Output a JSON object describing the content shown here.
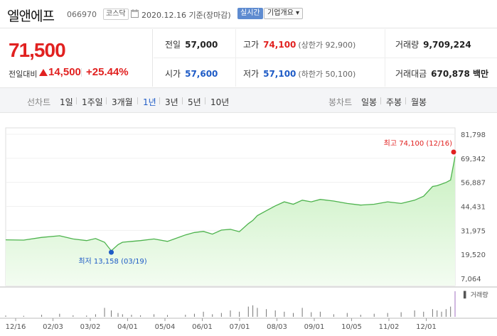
{
  "header": {
    "name": "엘앤에프",
    "code": "066970",
    "market": "코스닥",
    "date_text": "2020.12.16  기준(장마감)",
    "realtime_label": "실시간",
    "overview_label": "기업개요 ▾"
  },
  "price": {
    "current": "71,500",
    "change_label": "전일대비",
    "change": "14,500",
    "change_pct": "+25.44%"
  },
  "stats": {
    "prev_close_label": "전일",
    "prev_close": "57,000",
    "high_label": "고가",
    "high": "74,100",
    "upper_limit": "(상한가 92,900)",
    "volume_label": "거래량",
    "volume": "9,709,224",
    "open_label": "시가",
    "open": "57,600",
    "low_label": "저가",
    "low": "57,100",
    "lower_limit": "(하한가 50,100)",
    "amount_label": "거래대금",
    "amount": "670,878 백만"
  },
  "period": {
    "line_chart_label": "선차트",
    "items": [
      "1일",
      "1주일",
      "3개월",
      "1년",
      "3년",
      "5년",
      "10년"
    ],
    "active": "1년",
    "candle_label": "봉차트",
    "candle_items": [
      "일봉",
      "주봉",
      "월봉"
    ]
  },
  "colors": {
    "up": "#e12120",
    "down": "#1e5bc6",
    "line": "#4db34d",
    "fill_top": "#c8f0c0",
    "fill_bottom": "#f3fcf1"
  },
  "chart_data": {
    "type": "area",
    "ylim": [
      7064,
      81798
    ],
    "yticks": [
      "81,798",
      "69,342",
      "56,887",
      "44,431",
      "31,975",
      "19,520",
      "7,064"
    ],
    "xticks": [
      "12/16",
      "02/03",
      "03/02",
      "04/01",
      "05/04",
      "06/01",
      "07/01",
      "08/03",
      "09/01",
      "10/05",
      "11/02",
      "12/01"
    ],
    "max_label": "최고  74,100 (12/16)",
    "min_label": "최저  13,158 (03/19)",
    "volume_label": "▌ 거래량",
    "x": [
      0,
      0.04,
      0.08,
      0.12,
      0.15,
      0.18,
      0.2,
      0.22,
      0.235,
      0.25,
      0.26,
      0.28,
      0.3,
      0.33,
      0.36,
      0.4,
      0.42,
      0.44,
      0.46,
      0.48,
      0.5,
      0.52,
      0.54,
      0.55,
      0.56,
      0.58,
      0.6,
      0.62,
      0.64,
      0.66,
      0.68,
      0.7,
      0.73,
      0.76,
      0.79,
      0.82,
      0.85,
      0.88,
      0.91,
      0.93,
      0.95,
      0.96,
      0.97,
      0.98,
      0.99,
      1.0
    ],
    "values": [
      20000,
      19800,
      21500,
      22500,
      20500,
      19500,
      20800,
      18500,
      13158,
      17000,
      18500,
      19000,
      19500,
      20500,
      19000,
      23000,
      24500,
      25200,
      23500,
      26000,
      26500,
      25000,
      30000,
      32000,
      35000,
      38000,
      41000,
      43500,
      42000,
      44500,
      43500,
      45000,
      44000,
      42500,
      41500,
      42000,
      43500,
      42500,
      44500,
      47000,
      53000,
      53500,
      54500,
      55500,
      57000,
      71500
    ],
    "volume": [
      0.05,
      0.04,
      0.08,
      0.12,
      0.06,
      0.05,
      0.1,
      0.35,
      0.25,
      0.15,
      0.1,
      0.08,
      0.06,
      0.1,
      0.07,
      0.08,
      0.12,
      0.2,
      0.1,
      0.15,
      0.25,
      0.2,
      0.4,
      0.45,
      0.35,
      0.3,
      0.25,
      0.2,
      0.15,
      0.35,
      0.18,
      0.2,
      0.1,
      0.15,
      0.08,
      0.12,
      0.15,
      0.18,
      0.25,
      0.2,
      0.3,
      0.25,
      0.2,
      0.3,
      0.4,
      1.0
    ]
  }
}
